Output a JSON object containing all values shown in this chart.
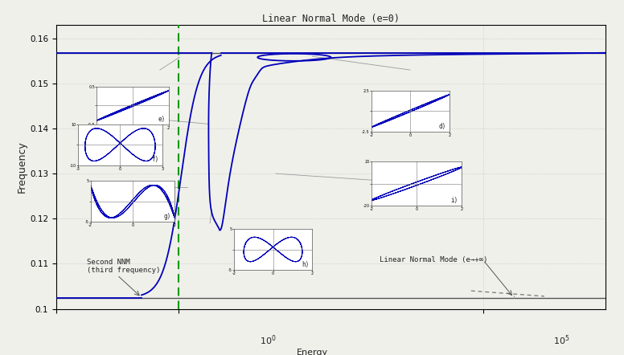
{
  "title": "Linear Normal Mode (e=0)",
  "ylabel": "Frequency",
  "ylim": [
    0.1,
    0.163
  ],
  "freq_upper": 0.1568,
  "freq_lower": 0.1025,
  "bg_color": "#f0f0eb",
  "curve_color": "#0000bb",
  "green_color": "#009900",
  "gray_color": "#888888",
  "ann_color": "#999999",
  "text_second_nnm": "Second NNM\n(third frequency)",
  "text_linear_inf": "Linear Normal Mode (e→+∞)",
  "yticks": [
    0.1,
    0.11,
    0.12,
    0.13,
    0.14,
    0.15,
    0.16
  ],
  "ytick_labels": [
    "0.1",
    "0.11",
    "0.12",
    "0.13",
    "0.14",
    "0.15",
    "0.16"
  ]
}
